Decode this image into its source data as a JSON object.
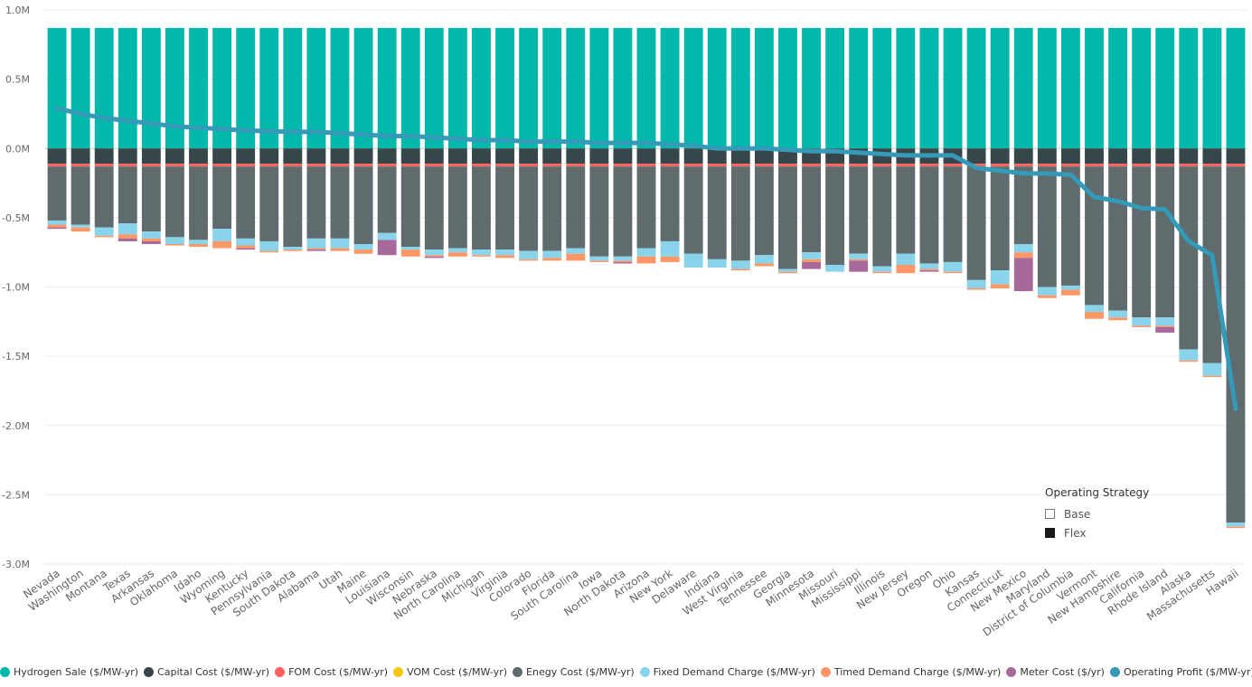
{
  "chart_data": {
    "type": "bar",
    "stacked": true,
    "ylim": [
      -3.0,
      1.0
    ],
    "y_unit": "M",
    "y_ticks": [
      "1.0M",
      "0.5M",
      "0.0M",
      "-0.5M",
      "-1.0M",
      "-1.5M",
      "-2.0M",
      "-2.5M",
      "-3.0M"
    ],
    "y_tick_values": [
      1.0,
      0.5,
      0.0,
      -0.5,
      -1.0,
      -1.5,
      -2.0,
      -2.5,
      -3.0
    ],
    "grid": true,
    "categories": [
      "Nevada",
      "Washington",
      "Montana",
      "Texas",
      "Arkansas",
      "Oklahoma",
      "Idaho",
      "Wyoming",
      "Kentucky",
      "Pennsylvania",
      "South Dakota",
      "Alabama",
      "Utah",
      "Maine",
      "Louisiana",
      "Wisconsin",
      "Nebraska",
      "North Carolina",
      "Michigan",
      "Virginia",
      "Colorado",
      "Florida",
      "South Carolina",
      "Iowa",
      "North Dakota",
      "Arizona",
      "New York",
      "Delaware",
      "Indiana",
      "West Virginia",
      "Tennessee",
      "Georgia",
      "Minnesota",
      "Missouri",
      "Mississippi",
      "Illinois",
      "New Jersey",
      "Oregon",
      "Ohio",
      "Kansas",
      "Connecticut",
      "New Mexico",
      "Maryland",
      "District of Columbia",
      "Vermont",
      "New Hampshire",
      "California",
      "Rhode Island",
      "Alaska",
      "Massachusetts",
      "Hawaii"
    ],
    "series": [
      {
        "name": "Hydrogen Sale ($/MW-yr)",
        "color": "#01B8AA",
        "kind": "bar",
        "values": [
          0.87,
          0.87,
          0.87,
          0.87,
          0.87,
          0.87,
          0.87,
          0.87,
          0.87,
          0.87,
          0.87,
          0.87,
          0.87,
          0.87,
          0.87,
          0.87,
          0.87,
          0.87,
          0.87,
          0.87,
          0.87,
          0.87,
          0.87,
          0.87,
          0.87,
          0.87,
          0.87,
          0.87,
          0.87,
          0.87,
          0.87,
          0.87,
          0.87,
          0.87,
          0.87,
          0.87,
          0.87,
          0.87,
          0.87,
          0.87,
          0.87,
          0.87,
          0.87,
          0.87,
          0.87,
          0.87,
          0.87,
          0.87,
          0.87,
          0.87,
          0.87
        ]
      },
      {
        "name": "Capital Cost ($/MW-yr)",
        "color": "#374649",
        "kind": "bar",
        "values": [
          -0.11,
          -0.11,
          -0.11,
          -0.11,
          -0.11,
          -0.11,
          -0.11,
          -0.11,
          -0.11,
          -0.11,
          -0.11,
          -0.11,
          -0.11,
          -0.11,
          -0.11,
          -0.11,
          -0.11,
          -0.11,
          -0.11,
          -0.11,
          -0.11,
          -0.11,
          -0.11,
          -0.11,
          -0.11,
          -0.11,
          -0.11,
          -0.11,
          -0.11,
          -0.11,
          -0.11,
          -0.11,
          -0.11,
          -0.11,
          -0.11,
          -0.11,
          -0.11,
          -0.11,
          -0.11,
          -0.11,
          -0.11,
          -0.11,
          -0.11,
          -0.11,
          -0.11,
          -0.11,
          -0.11,
          -0.11,
          -0.11,
          -0.11,
          -0.11
        ]
      },
      {
        "name": "FOM Cost ($/MW-yr)",
        "color": "#FD625E",
        "kind": "bar",
        "values": [
          -0.02,
          -0.02,
          -0.02,
          -0.02,
          -0.02,
          -0.02,
          -0.02,
          -0.02,
          -0.02,
          -0.02,
          -0.02,
          -0.02,
          -0.02,
          -0.02,
          -0.02,
          -0.02,
          -0.02,
          -0.02,
          -0.02,
          -0.02,
          -0.02,
          -0.02,
          -0.02,
          -0.02,
          -0.02,
          -0.02,
          -0.02,
          -0.02,
          -0.02,
          -0.02,
          -0.02,
          -0.02,
          -0.02,
          -0.02,
          -0.02,
          -0.02,
          -0.02,
          -0.02,
          -0.02,
          -0.02,
          -0.02,
          -0.02,
          -0.02,
          -0.02,
          -0.02,
          -0.02,
          -0.02,
          -0.02,
          -0.02,
          -0.02,
          -0.02
        ]
      },
      {
        "name": "VOM Cost ($/MW-yr)",
        "color": "#F2C80F",
        "kind": "bar",
        "values": [
          0,
          0,
          0,
          0,
          0,
          0,
          0,
          0,
          0,
          0,
          0,
          0,
          0,
          0,
          0,
          0,
          0,
          0,
          0,
          0,
          0,
          0,
          0,
          0,
          0,
          0,
          0,
          0,
          0,
          0,
          0,
          0,
          0,
          0,
          0,
          0,
          0,
          0,
          0,
          0,
          0,
          0,
          0,
          0,
          0,
          0,
          0,
          0,
          0,
          0,
          0
        ]
      },
      {
        "name": "Enegy Cost ($/MW-yr)",
        "color": "#5F6B6D",
        "kind": "bar",
        "values": [
          -0.39,
          -0.42,
          -0.44,
          -0.41,
          -0.47,
          -0.51,
          -0.53,
          -0.45,
          -0.52,
          -0.54,
          -0.58,
          -0.52,
          -0.52,
          -0.56,
          -0.48,
          -0.58,
          -0.6,
          -0.59,
          -0.6,
          -0.6,
          -0.61,
          -0.61,
          -0.59,
          -0.65,
          -0.65,
          -0.59,
          -0.54,
          -0.63,
          -0.67,
          -0.68,
          -0.64,
          -0.74,
          -0.62,
          -0.71,
          -0.63,
          -0.72,
          -0.63,
          -0.7,
          -0.69,
          -0.82,
          -0.75,
          -0.56,
          -0.87,
          -0.86,
          -1.0,
          -1.04,
          -1.09,
          -1.09,
          -1.32,
          -1.42,
          -2.57
        ]
      },
      {
        "name": "Fixed Demand Charge ($/MW-yr)",
        "color": "#8AD4EB",
        "kind": "bar",
        "values": [
          -0.03,
          -0.02,
          -0.06,
          -0.08,
          -0.05,
          -0.05,
          -0.03,
          -0.09,
          -0.05,
          -0.07,
          -0.02,
          -0.07,
          -0.07,
          -0.04,
          -0.05,
          -0.02,
          -0.04,
          -0.03,
          -0.04,
          -0.04,
          -0.06,
          -0.05,
          -0.04,
          -0.03,
          -0.03,
          -0.06,
          -0.11,
          -0.1,
          -0.06,
          -0.06,
          -0.06,
          -0.02,
          -0.05,
          -0.05,
          -0.04,
          -0.04,
          -0.08,
          -0.04,
          -0.07,
          -0.06,
          -0.1,
          -0.06,
          -0.06,
          -0.03,
          -0.05,
          -0.05,
          -0.06,
          -0.06,
          -0.08,
          -0.09,
          -0.03
        ]
      },
      {
        "name": "Timed Demand Charge ($/MW-yr)",
        "color": "#FE9666",
        "kind": "bar",
        "values": [
          -0.02,
          -0.03,
          -0.01,
          -0.03,
          -0.02,
          -0.01,
          -0.02,
          -0.05,
          -0.02,
          -0.01,
          -0.01,
          -0.01,
          -0.02,
          -0.03,
          0,
          -0.05,
          -0.01,
          -0.03,
          -0.01,
          -0.02,
          -0.01,
          -0.02,
          -0.05,
          -0.01,
          -0.01,
          -0.05,
          -0.04,
          0,
          0,
          -0.01,
          -0.02,
          -0.01,
          -0.02,
          0,
          -0.01,
          -0.01,
          -0.06,
          -0.01,
          -0.01,
          -0.01,
          -0.03,
          -0.04,
          -0.02,
          -0.04,
          -0.05,
          -0.02,
          -0.01,
          -0.01,
          -0.01,
          -0.01,
          -0.01
        ]
      },
      {
        "name": "Meter Cost ($/yr)",
        "color": "#A66999",
        "kind": "bar",
        "values": [
          -0.01,
          0,
          0,
          -0.02,
          -0.02,
          0,
          0,
          0,
          -0.01,
          0,
          0,
          -0.01,
          0,
          0,
          -0.11,
          0,
          -0.01,
          0,
          0,
          0,
          0,
          0,
          0,
          0,
          -0.01,
          0,
          0,
          0,
          0,
          0,
          0,
          0,
          -0.05,
          0,
          -0.08,
          0,
          0,
          -0.01,
          0,
          0,
          0,
          -0.24,
          0,
          0,
          0,
          0,
          0,
          -0.04,
          0,
          0,
          0
        ]
      },
      {
        "name": "Operating Profit ($/MW-yr)",
        "color": "#3599B8",
        "kind": "line",
        "values": [
          0.29,
          0.25,
          0.22,
          0.2,
          0.18,
          0.16,
          0.15,
          0.14,
          0.13,
          0.125,
          0.12,
          0.12,
          0.11,
          0.1,
          0.09,
          0.09,
          0.08,
          0.07,
          0.06,
          0.06,
          0.05,
          0.05,
          0.05,
          0.04,
          0.04,
          0.04,
          0.03,
          0.02,
          0.0,
          0.0,
          0.0,
          -0.01,
          -0.02,
          -0.02,
          -0.03,
          -0.04,
          -0.05,
          -0.05,
          -0.05,
          -0.14,
          -0.16,
          -0.18,
          -0.18,
          -0.19,
          -0.35,
          -0.38,
          -0.43,
          -0.44,
          -0.67,
          -0.77,
          -1.88
        ]
      }
    ],
    "legend_strategy": {
      "title": "Operating Strategy",
      "items": [
        {
          "label": "Base"
        },
        {
          "label": "Flex"
        }
      ]
    }
  }
}
